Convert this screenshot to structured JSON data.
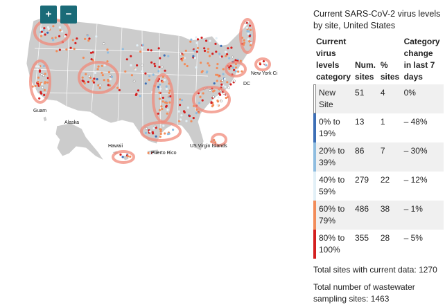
{
  "map": {
    "zoom_in_label": "+",
    "zoom_out_label": "−",
    "labels": {
      "guam": "Guam",
      "alaska": "Alaska",
      "hawaii": "Hawaii",
      "puerto_rico": "Puerto Rico",
      "us_virgin_islands": "US Virgin Islands",
      "new_york_city": "New York Ci",
      "dc": "DC"
    },
    "colors": {
      "land": "#cccccc",
      "state_border": "#ffffff",
      "highlight": "#f08a7a"
    }
  },
  "panel": {
    "title": "Current SARS-CoV-2 virus levels by site, United States",
    "headers": {
      "category": "Current virus levels category",
      "num_sites": "Num. sites",
      "pct_sites": "% sites",
      "change": "Category change in last 7 days"
    },
    "rows": [
      {
        "color": "#ffffff",
        "category": "New Site",
        "num": "51",
        "pct": "4",
        "change": "0%"
      },
      {
        "color": "#3d6fb6",
        "category": "0% to 19%",
        "num": "13",
        "pct": "1",
        "change": "– 48%"
      },
      {
        "color": "#8fbde0",
        "category": "20% to 39%",
        "num": "86",
        "pct": "7",
        "change": "– 30%"
      },
      {
        "color": "#e2f0f7",
        "category": "40% to 59%",
        "num": "279",
        "pct": "22",
        "change": "– 12%"
      },
      {
        "color": "#f28c5a",
        "category": "60% to 79%",
        "num": "486",
        "pct": "38",
        "change": "– 1%"
      },
      {
        "color": "#d42020",
        "category": "80% to 100%",
        "num": "355",
        "pct": "28",
        "change": "– 5%"
      }
    ],
    "total_current": "Total sites with current data: 1270",
    "total_sampling": "Total number of wastewater sampling sites: 1463"
  }
}
